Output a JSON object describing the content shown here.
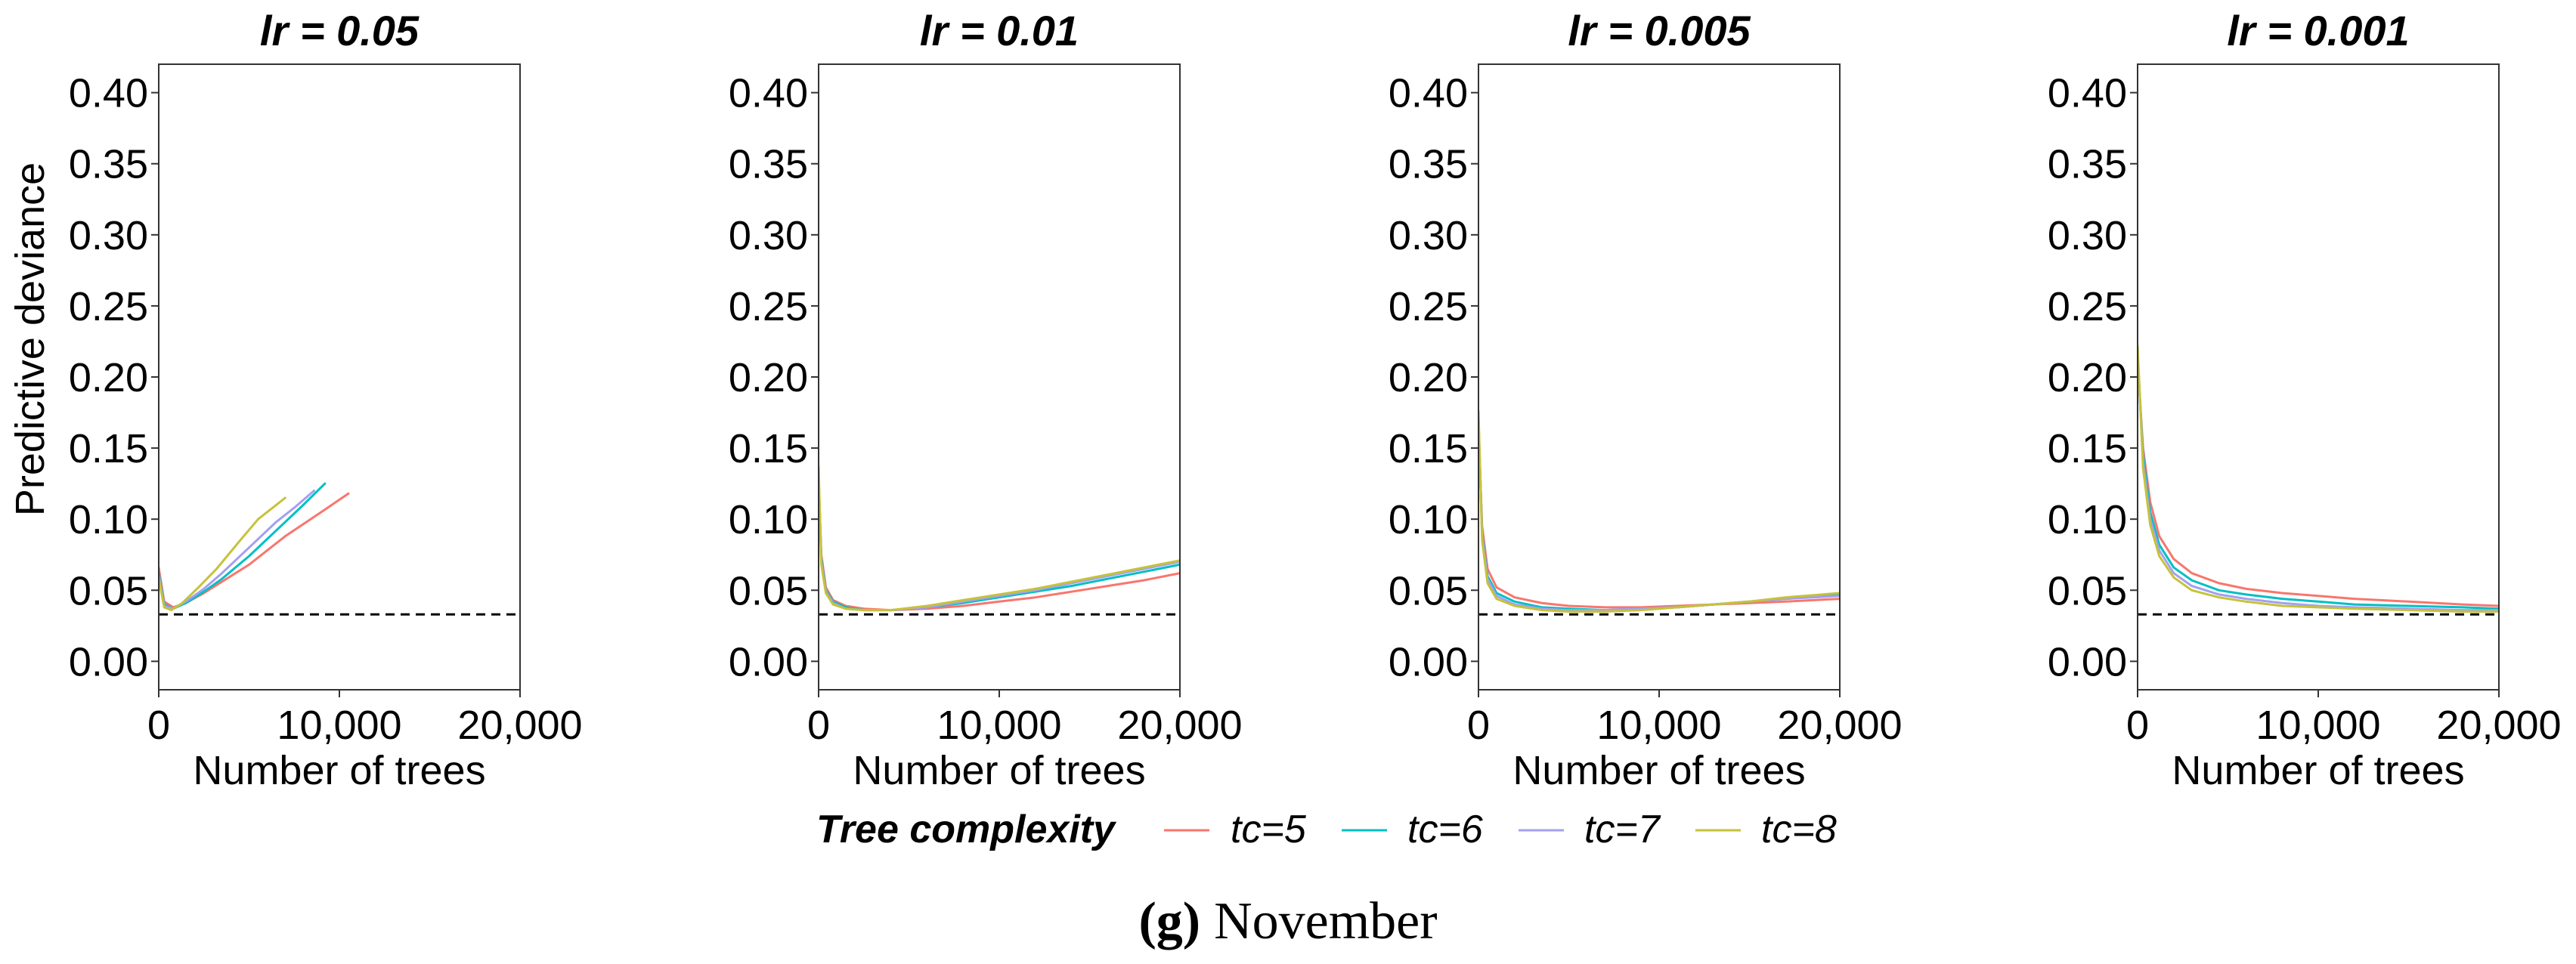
{
  "chart_data": [
    {
      "type": "line",
      "title": "lr = 0.05",
      "xlabel": "Number of trees",
      "ylabel": "Predictive deviance",
      "xlim": [
        0,
        20000
      ],
      "ylim": [
        -0.02,
        0.42
      ],
      "xticks": [
        0,
        10000,
        20000
      ],
      "xtick_labels": [
        "0",
        "10,000",
        "20,000"
      ],
      "yticks": [
        0,
        0.05,
        0.1,
        0.15,
        0.2,
        0.25,
        0.3,
        0.35,
        0.4
      ],
      "ytick_labels": [
        "0.00",
        "0.05",
        "0.10",
        "0.15",
        "0.20",
        "0.25",
        "0.30",
        "0.35",
        "0.40"
      ],
      "reference_line": 0.033,
      "series": [
        {
          "name": "tc=5",
          "x": [
            0,
            300,
            800,
            1500,
            2500,
            3500,
            5000,
            7000,
            9000,
            10500
          ],
          "y": [
            0.066,
            0.042,
            0.038,
            0.041,
            0.048,
            0.056,
            0.068,
            0.088,
            0.105,
            0.118
          ]
        },
        {
          "name": "tc=6",
          "x": [
            0,
            300,
            800,
            1500,
            2500,
            3500,
            5000,
            6500,
            8000,
            9200
          ],
          "y": [
            0.062,
            0.04,
            0.037,
            0.041,
            0.049,
            0.058,
            0.074,
            0.092,
            0.11,
            0.125
          ]
        },
        {
          "name": "tc=7",
          "x": [
            0,
            300,
            800,
            1500,
            2500,
            3500,
            5000,
            6500,
            7500,
            8600
          ],
          "y": [
            0.06,
            0.039,
            0.037,
            0.042,
            0.051,
            0.062,
            0.08,
            0.098,
            0.108,
            0.12
          ]
        },
        {
          "name": "tc=8",
          "x": [
            0,
            300,
            700,
            1300,
            2200,
            3200,
            4500,
            5500,
            6500,
            7000
          ],
          "y": [
            0.058,
            0.038,
            0.036,
            0.041,
            0.052,
            0.065,
            0.085,
            0.1,
            0.11,
            0.115
          ]
        }
      ]
    },
    {
      "type": "line",
      "title": "lr = 0.01",
      "xlabel": "Number of trees",
      "ylabel": "",
      "xlim": [
        0,
        20000
      ],
      "ylim": [
        -0.02,
        0.42
      ],
      "xticks": [
        0,
        10000,
        20000
      ],
      "xtick_labels": [
        "0",
        "10,000",
        "20,000"
      ],
      "yticks": [
        0,
        0.05,
        0.1,
        0.15,
        0.2,
        0.25,
        0.3,
        0.35,
        0.4
      ],
      "ytick_labels": [
        "0.00",
        "0.05",
        "0.10",
        "0.15",
        "0.20",
        "0.25",
        "0.30",
        "0.35",
        "0.40"
      ],
      "reference_line": 0.033,
      "series": [
        {
          "name": "tc=5",
          "x": [
            0,
            150,
            400,
            800,
            1500,
            2500,
            4000,
            6000,
            8000,
            10000,
            12000,
            14000,
            16000,
            18000,
            20000
          ],
          "y": [
            0.125,
            0.075,
            0.052,
            0.043,
            0.039,
            0.037,
            0.036,
            0.037,
            0.039,
            0.042,
            0.045,
            0.049,
            0.053,
            0.057,
            0.062
          ]
        },
        {
          "name": "tc=6",
          "x": [
            0,
            150,
            400,
            800,
            1500,
            2500,
            4000,
            6000,
            8000,
            10000,
            12000,
            14000,
            16000,
            18000,
            20000
          ],
          "y": [
            0.13,
            0.072,
            0.05,
            0.042,
            0.038,
            0.036,
            0.036,
            0.038,
            0.041,
            0.045,
            0.049,
            0.053,
            0.058,
            0.063,
            0.068
          ]
        },
        {
          "name": "tc=7",
          "x": [
            0,
            150,
            400,
            800,
            1500,
            2500,
            4000,
            6000,
            8000,
            10000,
            12000,
            14000,
            16000,
            18000,
            20000
          ],
          "y": [
            0.133,
            0.07,
            0.049,
            0.041,
            0.037,
            0.036,
            0.036,
            0.038,
            0.042,
            0.046,
            0.05,
            0.055,
            0.06,
            0.065,
            0.07
          ]
        },
        {
          "name": "tc=8",
          "x": [
            0,
            150,
            400,
            800,
            1500,
            2500,
            4000,
            6000,
            8000,
            10000,
            12000,
            14000,
            16000,
            18000,
            20000
          ],
          "y": [
            0.137,
            0.068,
            0.048,
            0.04,
            0.037,
            0.036,
            0.036,
            0.039,
            0.043,
            0.047,
            0.051,
            0.056,
            0.061,
            0.066,
            0.071
          ]
        }
      ]
    },
    {
      "type": "line",
      "title": "lr = 0.005",
      "xlabel": "Number of trees",
      "ylabel": "",
      "xlim": [
        0,
        20000
      ],
      "ylim": [
        -0.02,
        0.42
      ],
      "xticks": [
        0,
        10000,
        20000
      ],
      "xtick_labels": [
        "0",
        "10,000",
        "20,000"
      ],
      "yticks": [
        0,
        0.05,
        0.1,
        0.15,
        0.2,
        0.25,
        0.3,
        0.35,
        0.4
      ],
      "ytick_labels": [
        "0.00",
        "0.05",
        "0.10",
        "0.15",
        "0.20",
        "0.25",
        "0.30",
        "0.35",
        "0.40"
      ],
      "reference_line": 0.033,
      "series": [
        {
          "name": "tc=5",
          "x": [
            0,
            200,
            500,
            1000,
            2000,
            3500,
            5000,
            7000,
            9000,
            11000,
            13000,
            15000,
            17000,
            20000
          ],
          "y": [
            0.165,
            0.095,
            0.065,
            0.052,
            0.045,
            0.041,
            0.039,
            0.038,
            0.038,
            0.039,
            0.04,
            0.041,
            0.042,
            0.044
          ]
        },
        {
          "name": "tc=6",
          "x": [
            0,
            200,
            500,
            1000,
            2000,
            3500,
            5000,
            7000,
            9000,
            11000,
            13000,
            15000,
            17000,
            20000
          ],
          "y": [
            0.17,
            0.09,
            0.06,
            0.048,
            0.042,
            0.038,
            0.037,
            0.036,
            0.037,
            0.038,
            0.04,
            0.042,
            0.044,
            0.047
          ]
        },
        {
          "name": "tc=7",
          "x": [
            0,
            200,
            500,
            1000,
            2000,
            3500,
            5000,
            7000,
            9000,
            11000,
            13000,
            15000,
            17000,
            20000
          ],
          "y": [
            0.172,
            0.088,
            0.058,
            0.046,
            0.04,
            0.037,
            0.036,
            0.036,
            0.037,
            0.038,
            0.04,
            0.042,
            0.044,
            0.046
          ]
        },
        {
          "name": "tc=8",
          "x": [
            0,
            200,
            500,
            1000,
            2000,
            3500,
            5000,
            7000,
            9000,
            11000,
            13000,
            15000,
            17000,
            20000
          ],
          "y": [
            0.176,
            0.085,
            0.055,
            0.044,
            0.039,
            0.036,
            0.035,
            0.035,
            0.036,
            0.038,
            0.04,
            0.042,
            0.045,
            0.048
          ]
        }
      ]
    },
    {
      "type": "line",
      "title": "lr = 0.001",
      "xlabel": "Number of trees",
      "ylabel": "",
      "xlim": [
        0,
        20000
      ],
      "ylim": [
        -0.02,
        0.42
      ],
      "xticks": [
        0,
        10000,
        20000
      ],
      "xtick_labels": [
        "0",
        "10,000",
        "20,000"
      ],
      "yticks": [
        0,
        0.05,
        0.1,
        0.15,
        0.2,
        0.25,
        0.3,
        0.35,
        0.4
      ],
      "ytick_labels": [
        "0.00",
        "0.05",
        "0.10",
        "0.15",
        "0.20",
        "0.25",
        "0.30",
        "0.35",
        "0.40"
      ],
      "reference_line": 0.033,
      "series": [
        {
          "name": "tc=5",
          "x": [
            0,
            300,
            700,
            1200,
            2000,
            3000,
            4500,
            6000,
            8000,
            10000,
            12000,
            15000,
            18000,
            20000
          ],
          "y": [
            0.21,
            0.15,
            0.112,
            0.088,
            0.072,
            0.062,
            0.055,
            0.051,
            0.048,
            0.046,
            0.044,
            0.042,
            0.04,
            0.039
          ]
        },
        {
          "name": "tc=6",
          "x": [
            0,
            300,
            700,
            1200,
            2000,
            3000,
            4500,
            6000,
            8000,
            10000,
            12000,
            15000,
            18000,
            20000
          ],
          "y": [
            0.215,
            0.145,
            0.105,
            0.082,
            0.066,
            0.057,
            0.05,
            0.047,
            0.044,
            0.042,
            0.04,
            0.039,
            0.038,
            0.037
          ]
        },
        {
          "name": "tc=7",
          "x": [
            0,
            300,
            700,
            1200,
            2000,
            3000,
            4500,
            6000,
            8000,
            10000,
            12000,
            15000,
            18000,
            20000
          ],
          "y": [
            0.218,
            0.14,
            0.1,
            0.078,
            0.062,
            0.053,
            0.047,
            0.044,
            0.041,
            0.039,
            0.038,
            0.037,
            0.036,
            0.036
          ]
        },
        {
          "name": "tc=8",
          "x": [
            0,
            300,
            700,
            1200,
            2000,
            3000,
            4500,
            6000,
            8000,
            10000,
            12000,
            15000,
            18000,
            20000
          ],
          "y": [
            0.222,
            0.136,
            0.096,
            0.074,
            0.059,
            0.05,
            0.045,
            0.042,
            0.039,
            0.038,
            0.037,
            0.036,
            0.035,
            0.035
          ]
        }
      ]
    }
  ],
  "legend": {
    "title": "Tree complexity",
    "items": [
      {
        "label": "tc=5",
        "color": "#f8766d"
      },
      {
        "label": "tc=6",
        "color": "#00bfc4"
      },
      {
        "label": "tc=7",
        "color": "#a3a0f0"
      },
      {
        "label": "tc=8",
        "color": "#c6c23a"
      }
    ]
  },
  "caption": {
    "letter": "(g)",
    "text": "November"
  }
}
